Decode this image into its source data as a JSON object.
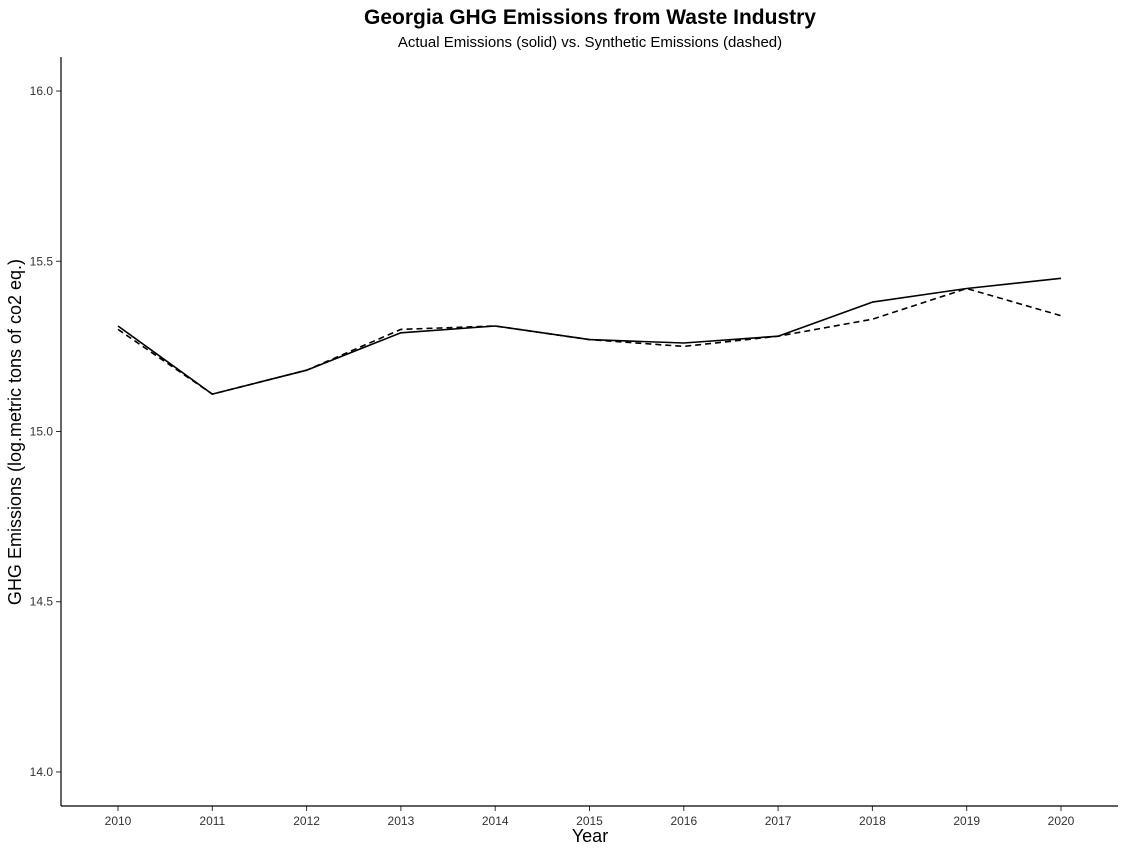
{
  "chart_data": {
    "type": "line",
    "title": "Georgia GHG Emissions from Waste Industry",
    "subtitle": "Actual Emissions (solid) vs. Synthetic Emissions (dashed)",
    "xlabel": "Year",
    "ylabel": "GHG Emissions (log.metric tons of co2 eq.)",
    "x": [
      2010,
      2011,
      2012,
      2013,
      2014,
      2015,
      2016,
      2017,
      2018,
      2019,
      2020
    ],
    "x_ticks": [
      "2010",
      "2011",
      "2012",
      "2013",
      "2014",
      "2015",
      "2016",
      "2017",
      "2018",
      "2019",
      "2020"
    ],
    "y_ticks": [
      "14.0",
      "14.5",
      "15.0",
      "15.5",
      "16.0"
    ],
    "ylim": [
      13.9,
      16.1
    ],
    "grid": false,
    "legend": "none",
    "series": [
      {
        "style": "solid",
        "color": "#000000",
        "values": [
          15.31,
          15.11,
          15.18,
          15.29,
          15.31,
          15.27,
          15.26,
          15.28,
          15.38,
          15.42,
          15.45
        ]
      },
      {
        "style": "dashed",
        "color": "#000000",
        "values": [
          15.3,
          15.11,
          15.18,
          15.3,
          15.31,
          15.27,
          15.25,
          15.28,
          15.33,
          15.42,
          15.34
        ]
      }
    ]
  }
}
